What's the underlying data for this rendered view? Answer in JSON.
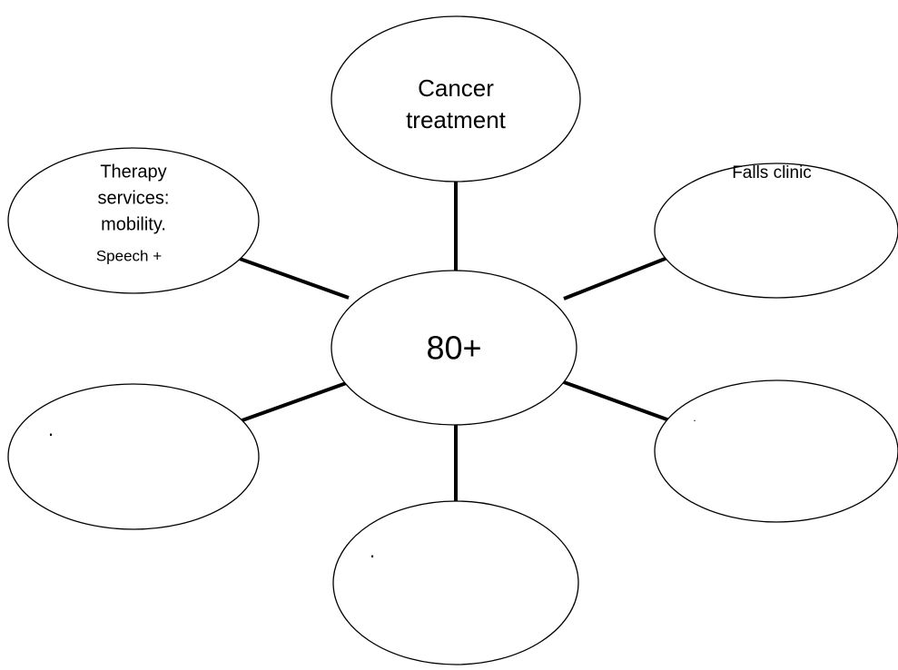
{
  "center": {
    "label": "80+"
  },
  "nodes": [
    {
      "lines": [
        "Cancer",
        "treatment"
      ]
    },
    {
      "lines": [
        "Falls clinic"
      ]
    },
    {
      "lines": [
        "Therapy",
        "services:",
        "mobility.",
        "Speech +"
      ]
    },
    {
      "lines": [
        "."
      ]
    },
    {
      "lines": [
        "."
      ]
    },
    {
      "lines": [
        "."
      ]
    }
  ]
}
